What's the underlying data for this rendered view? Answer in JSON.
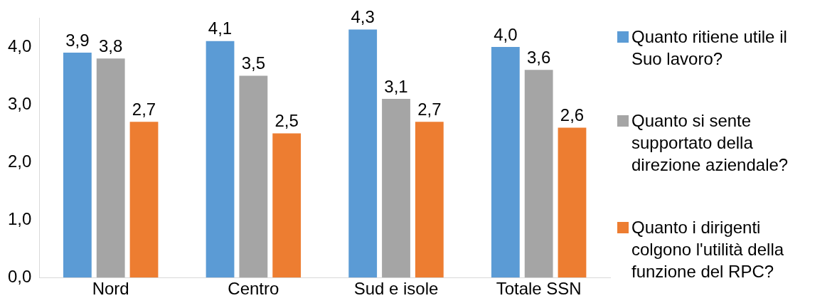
{
  "chart_data": {
    "type": "bar",
    "categories": [
      "Nord",
      "Centro",
      "Sud e isole",
      "Totale SSN"
    ],
    "series": [
      {
        "name": "Quanto ritiene utile il Suo lavoro?",
        "color": "#5b9bd5",
        "values": [
          3.9,
          4.1,
          4.3,
          4.0
        ],
        "value_labels": [
          "3,9",
          "4,1",
          "4,3",
          "4,0"
        ]
      },
      {
        "name": "Quanto si sente supportato della direzione aziendale?",
        "color": "#a5a5a5",
        "values": [
          3.8,
          3.5,
          3.1,
          3.6
        ],
        "value_labels": [
          "3,8",
          "3,5",
          "3,1",
          "3,6"
        ]
      },
      {
        "name": "Quanto i dirigenti colgono l'utilità della funzione del RPC?",
        "color": "#ed7d31",
        "values": [
          2.7,
          2.5,
          2.7,
          2.6
        ],
        "value_labels": [
          "2,7",
          "2,5",
          "2,7",
          "2,6"
        ]
      }
    ],
    "yticks": [
      {
        "value": 0,
        "label": "0,0"
      },
      {
        "value": 1,
        "label": "1,0"
      },
      {
        "value": 2,
        "label": "2,0"
      },
      {
        "value": 3,
        "label": "3,0"
      },
      {
        "value": 4,
        "label": "4,0"
      }
    ],
    "ylim": [
      0,
      4.5
    ],
    "grid": false,
    "legend": "right"
  }
}
